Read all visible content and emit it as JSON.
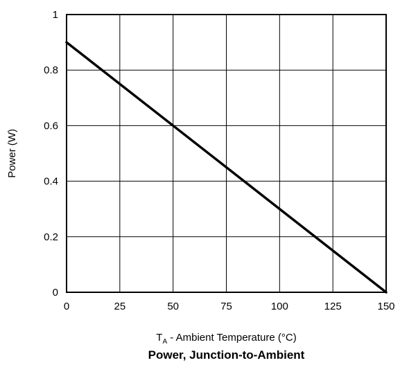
{
  "chart_data": {
    "type": "line",
    "title": "Power, Junction-to-Ambient",
    "xlabel_main": "T",
    "xlabel_sub": "A",
    "xlabel_rest": " - Ambient Temperature (°C)",
    "ylabel": "Power (W)",
    "xlim": [
      0,
      150
    ],
    "ylim": [
      0,
      1
    ],
    "xticks": [
      0,
      25,
      50,
      75,
      100,
      125,
      150
    ],
    "yticks": [
      0,
      0.2,
      0.4,
      0.6,
      0.8,
      1
    ],
    "xtick_labels": [
      "0",
      "25",
      "50",
      "75",
      "100",
      "125",
      "150"
    ],
    "ytick_labels": [
      "0",
      "0.2",
      "0.4",
      "0.6",
      "0.8",
      "1"
    ],
    "grid": true,
    "series": [
      {
        "x": [
          0,
          150
        ],
        "y": [
          0.9,
          0
        ]
      }
    ],
    "colors": {
      "line": "#000000",
      "grid": "#000000",
      "frame": "#000000"
    }
  }
}
